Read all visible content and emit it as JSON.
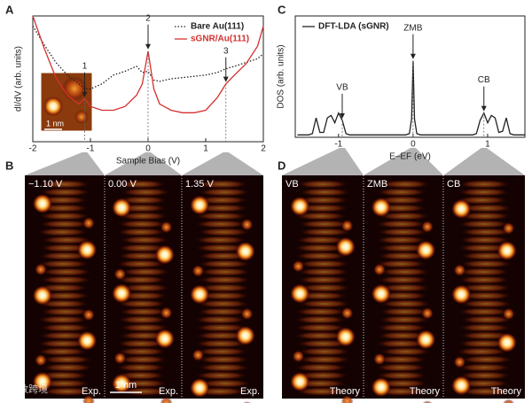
{
  "panel_letters": [
    "A",
    "B",
    "C",
    "D"
  ],
  "chart_data": [
    {
      "type": "line",
      "y_label": "dI/dV (arb. units)",
      "x_label": "Sample Bias (V)",
      "xlim": [
        -2,
        2
      ],
      "xticks": [
        -2,
        -1,
        0,
        1,
        2
      ],
      "ylim": [
        0,
        10
      ],
      "legend": "upper right",
      "x": [
        -2,
        -1.8,
        -1.6,
        -1.4,
        -1.2,
        -1.1,
        -1.0,
        -0.8,
        -0.6,
        -0.4,
        -0.2,
        -0.1,
        0,
        0.1,
        0.2,
        0.4,
        0.6,
        0.8,
        1.0,
        1.2,
        1.35,
        1.5,
        1.7,
        1.9,
        2.0
      ],
      "series": [
        {
          "name": "Bare Au(111)",
          "color": "#222222",
          "dash": "dotted",
          "values": [
            9.2,
            7.7,
            6.3,
            5.3,
            4.6,
            4.2,
            4.2,
            4.6,
            5.3,
            5.6,
            6.0,
            5.5,
            5.6,
            4.9,
            4.8,
            5.0,
            5.1,
            5.2,
            5.3,
            5.5,
            5.8,
            6.0,
            6.3,
            6.6,
            7.0
          ]
        },
        {
          "name": "sGNR/Au(111)",
          "color": "#d4312f",
          "dash": "solid",
          "values": [
            10,
            7.4,
            5.1,
            3.7,
            3.0,
            3.4,
            2.8,
            2.5,
            2.5,
            2.8,
            3.7,
            4.6,
            7.2,
            4.2,
            3.0,
            2.5,
            2.3,
            2.3,
            2.5,
            3.5,
            4.6,
            5.3,
            6.2,
            7.6,
            9.2
          ]
        }
      ],
      "annotations": [
        {
          "label": "1",
          "x": -1.1
        },
        {
          "label": "2",
          "x": 0
        },
        {
          "label": "3",
          "x": 1.35
        }
      ],
      "inset_scale_bar": "1 nm"
    },
    {
      "type": "line",
      "y_label": "DOS (arb. units)",
      "x_label": "E–EF (eV)",
      "xlim": [
        -1.58,
        1.5
      ],
      "xticks": [
        -1,
        0,
        1
      ],
      "ylim": [
        0,
        10
      ],
      "legend": "upper left",
      "x": [
        -1.55,
        -1.4,
        -1.35,
        -1.3,
        -1.25,
        -1.2,
        -1.15,
        -1.1,
        -1.05,
        -1.0,
        -0.95,
        -0.9,
        -0.85,
        -0.8,
        -0.5,
        -0.1,
        -0.05,
        -0.02,
        0,
        0.02,
        0.05,
        0.1,
        0.5,
        0.8,
        0.85,
        0.9,
        0.95,
        1.0,
        1.05,
        1.1,
        1.15,
        1.2,
        1.25,
        1.3,
        1.35,
        1.4,
        1.5
      ],
      "series": [
        {
          "name": "DFT-LDA (sGNR)",
          "color": "#222222",
          "dash": "solid",
          "values": [
            0.2,
            0.2,
            0.3,
            1.6,
            0.4,
            0.4,
            1.6,
            1.8,
            1.2,
            2.0,
            1.4,
            0.3,
            0.2,
            0.2,
            0.2,
            0.2,
            0.3,
            1.5,
            6.3,
            1.5,
            0.3,
            0.2,
            0.2,
            0.2,
            0.3,
            1.4,
            2.0,
            1.2,
            1.8,
            1.6,
            0.4,
            0.5,
            1.6,
            0.3,
            0.2,
            0.2,
            0.2
          ]
        }
      ],
      "annotations": [
        {
          "label": "VB",
          "x": -0.95
        },
        {
          "label": "ZMB",
          "x": 0
        },
        {
          "label": "CB",
          "x": 0.95
        }
      ]
    }
  ],
  "experiment_images": [
    {
      "label": "−1.10 V",
      "tag": "Exp."
    },
    {
      "label": "0.00 V",
      "tag": "Exp."
    },
    {
      "label": "1.35 V",
      "tag": "Exp."
    }
  ],
  "experiment_scale_bar": "1 nm",
  "theory_images": [
    {
      "label": "VB",
      "tag": "Theory"
    },
    {
      "label": "ZMB",
      "tag": "Theory"
    },
    {
      "label": "CB",
      "tag": "Theory"
    }
  ],
  "watermark": "大数跨境"
}
